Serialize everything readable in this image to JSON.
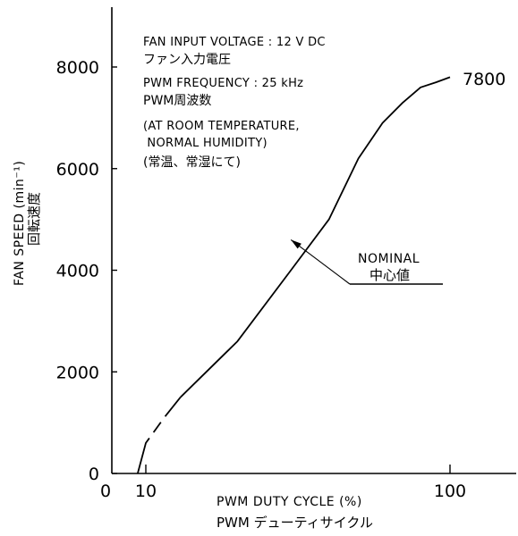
{
  "chart_data": {
    "type": "line",
    "xscale": "log",
    "xlim": [
      8,
      200
    ],
    "ylim": [
      0,
      9000
    ],
    "grid": false,
    "x_ticks": [
      {
        "value": 10,
        "label": "10"
      },
      {
        "value": 100,
        "label": "100"
      }
    ],
    "x_origin_label": "0",
    "y_ticks": [
      {
        "value": 0,
        "label": "0"
      },
      {
        "value": 2000,
        "label": "2000"
      },
      {
        "value": 4000,
        "label": "4000"
      },
      {
        "value": 6000,
        "label": "6000"
      },
      {
        "value": 8000,
        "label": "8000"
      }
    ],
    "xlabel": "PWM DUTY CYCLE (%)",
    "xlabel_jp": "PWM デューティサイクル",
    "ylabel": "FAN SPEED (min⁻¹)",
    "ylabel_jp": "回転速度",
    "series": [
      {
        "dashed_segment": [
          {
            "x": 9.4,
            "y": 0
          },
          {
            "x": 10,
            "y": 600
          },
          {
            "x": 11.5,
            "y": 1100
          },
          {
            "x": 13,
            "y": 1500
          }
        ],
        "solid_segment": [
          {
            "x": 13,
            "y": 1500
          },
          {
            "x": 20,
            "y": 2600
          },
          {
            "x": 30,
            "y": 4000
          },
          {
            "x": 40,
            "y": 5000
          },
          {
            "x": 50,
            "y": 6200
          },
          {
            "x": 60,
            "y": 6900
          },
          {
            "x": 70,
            "y": 7300
          },
          {
            "x": 80,
            "y": 7600
          },
          {
            "x": 90,
            "y": 7700
          },
          {
            "x": 100,
            "y": 7800
          }
        ]
      }
    ],
    "end_label": "7800",
    "annotation": {
      "label": "NOMINAL",
      "label_jp": "中心値",
      "points_to": {
        "x": 30,
        "y": 4600
      }
    },
    "notes": [
      "FAN INPUT VOLTAGE : 12 V DC",
      "ファン入力電圧",
      "PWM FREQUENCY : 25 kHz",
      "PWM周波数",
      "(AT ROOM TEMPERATURE,",
      " NORMAL HUMIDITY)",
      "(常温、常湿にて)"
    ]
  }
}
